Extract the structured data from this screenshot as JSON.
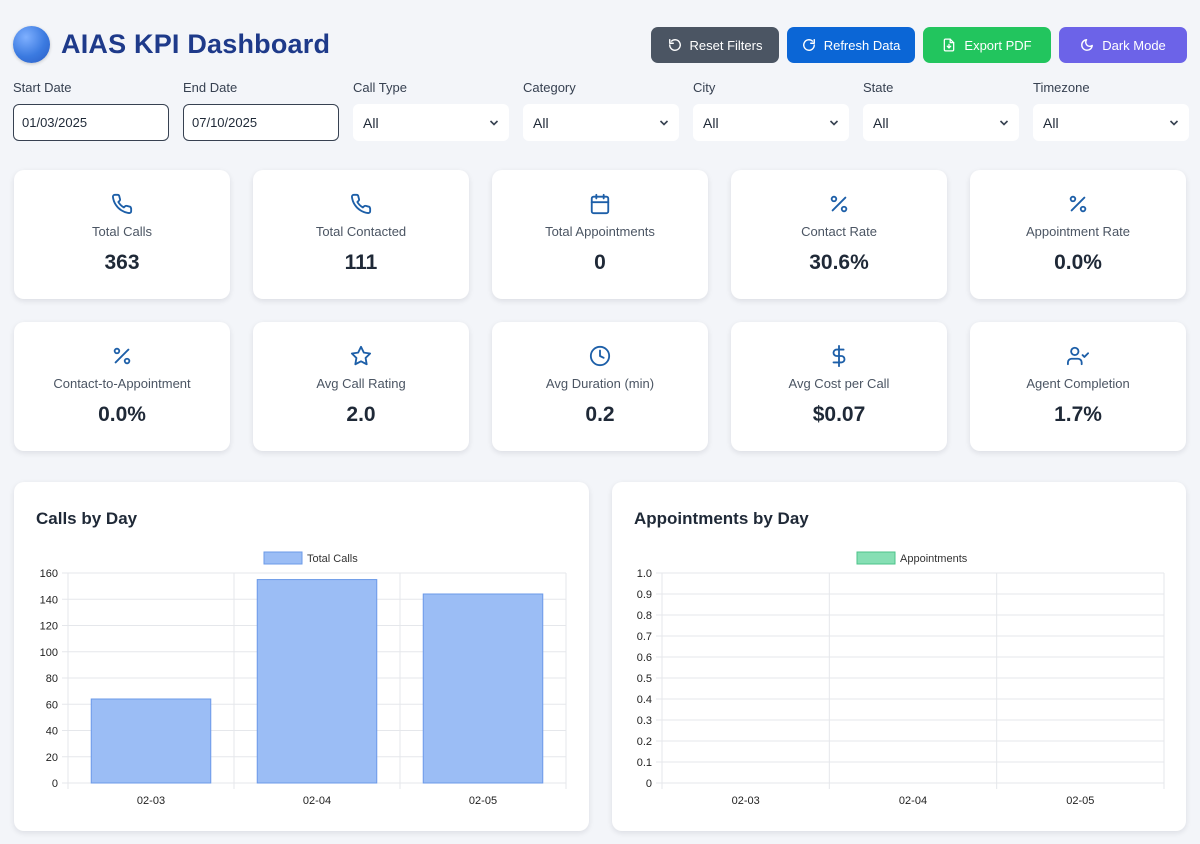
{
  "header": {
    "title": "AIAS KPI Dashboard"
  },
  "toolbar": {
    "reset_label": "Reset Filters",
    "refresh_label": "Refresh Data",
    "export_label": "Export PDF",
    "dark_label": "Dark Mode"
  },
  "filters": {
    "start_date": {
      "label": "Start Date",
      "value": "01/03/2025"
    },
    "end_date": {
      "label": "End Date",
      "value": "07/10/2025"
    },
    "call_type": {
      "label": "Call Type",
      "value": "All"
    },
    "category": {
      "label": "Category",
      "value": "All"
    },
    "city": {
      "label": "City",
      "value": "All"
    },
    "state": {
      "label": "State",
      "value": "All"
    },
    "timezone": {
      "label": "Timezone",
      "value": "All"
    }
  },
  "kpis": [
    {
      "icon": "phone-icon",
      "label": "Total Calls",
      "value": "363"
    },
    {
      "icon": "phone-icon",
      "label": "Total Contacted",
      "value": "111"
    },
    {
      "icon": "calendar-icon",
      "label": "Total Appointments",
      "value": "0"
    },
    {
      "icon": "percent-icon",
      "label": "Contact Rate",
      "value": "30.6%"
    },
    {
      "icon": "percent-icon",
      "label": "Appointment Rate",
      "value": "0.0%"
    },
    {
      "icon": "percent-icon",
      "label": "Contact-to-Appointment",
      "value": "0.0%"
    },
    {
      "icon": "star-icon",
      "label": "Avg Call Rating",
      "value": "2.0"
    },
    {
      "icon": "clock-icon",
      "label": "Avg Duration (min)",
      "value": "0.2"
    },
    {
      "icon": "dollar-icon",
      "label": "Avg Cost per Call",
      "value": "$0.07"
    },
    {
      "icon": "user-check-icon",
      "label": "Agent Completion",
      "value": "1.7%"
    }
  ],
  "colors": {
    "accent": "#1e3a8a",
    "icon": "#1d5fa8",
    "calls_bar": "#9bbdf5",
    "calls_border": "#6b9ae8",
    "appointments": "#86dfb4"
  },
  "chart_data": [
    {
      "type": "bar",
      "title": "Calls by Day",
      "categories": [
        "02-03",
        "02-04",
        "02-05"
      ],
      "series": [
        {
          "name": "Total Calls",
          "values": [
            64,
            155,
            144
          ]
        }
      ],
      "ylim": [
        0,
        160
      ],
      "yticks": [
        "0",
        "20",
        "40",
        "60",
        "80",
        "100",
        "120",
        "140",
        "160"
      ],
      "grid": true,
      "legend": "top-center"
    },
    {
      "type": "bar",
      "title": "Appointments by Day",
      "categories": [
        "02-03",
        "02-04",
        "02-05"
      ],
      "series": [
        {
          "name": "Appointments",
          "values": [
            0,
            0,
            0
          ]
        }
      ],
      "ylim": [
        0,
        1.0
      ],
      "yticks": [
        "0",
        "0.1",
        "0.2",
        "0.3",
        "0.4",
        "0.5",
        "0.6",
        "0.7",
        "0.8",
        "0.9",
        "1.0"
      ],
      "grid": true,
      "legend": "top-center"
    }
  ]
}
